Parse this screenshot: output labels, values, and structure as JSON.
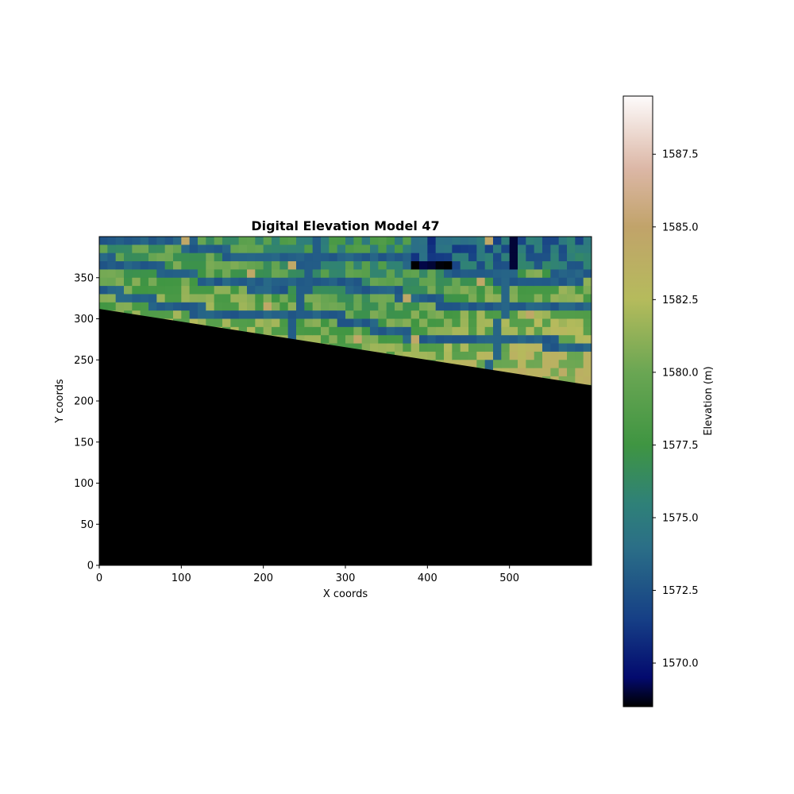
{
  "chart_data": {
    "type": "heatmap",
    "title": "Digital Elevation Model 47",
    "xlabel": "X coords",
    "ylabel": "Y coords",
    "xlim": [
      0,
      600
    ],
    "ylim": [
      0,
      400
    ],
    "x_ticks": [
      0,
      100,
      200,
      300,
      400,
      500
    ],
    "y_ticks": [
      0,
      50,
      100,
      150,
      200,
      250,
      300,
      350
    ],
    "grid": false,
    "colormap": "gist_earth",
    "colorbar": {
      "label": "Elevation (m)",
      "range": [
        1568.5,
        1589.5
      ],
      "ticks": [
        "1570.0",
        "1572.5",
        "1575.0",
        "1577.5",
        "1580.0",
        "1582.5",
        "1585.0",
        "1587.5"
      ],
      "tick_values": [
        1570.0,
        1572.5,
        1575.0,
        1577.5,
        1580.0,
        1582.5,
        1585.0,
        1587.5
      ]
    },
    "nodata_boundary": {
      "x": [
        0,
        600
      ],
      "y": [
        312,
        219
      ]
    },
    "nodata_color": "#000000",
    "colormap_stops": [
      {
        "value": 1568.5,
        "color": "#000000"
      },
      {
        "value": 1569.5,
        "color": "#030a6e"
      },
      {
        "value": 1571.5,
        "color": "#163f86"
      },
      {
        "value": 1574.0,
        "color": "#2b6f87"
      },
      {
        "value": 1575.5,
        "color": "#2f8178"
      },
      {
        "value": 1577.5,
        "color": "#3f9542"
      },
      {
        "value": 1580.0,
        "color": "#6aa653"
      },
      {
        "value": 1582.5,
        "color": "#b5bb5c"
      },
      {
        "value": 1585.0,
        "color": "#c1a36a"
      },
      {
        "value": 1587.0,
        "color": "#dcb7a6"
      },
      {
        "value": 1589.5,
        "color": "#fdfbfb"
      }
    ]
  }
}
